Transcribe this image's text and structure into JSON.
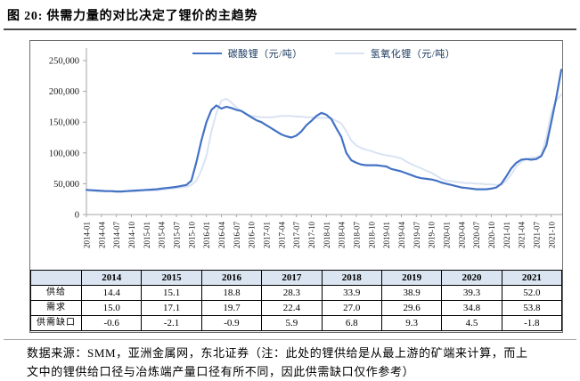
{
  "page": {
    "title": "图 20: 供需力量的对比决定了锂价的主趋势",
    "source_line1": "数据来源：SMM，亚洲金属网，东北证券（注：此处的锂供给是从最上游的矿端来计算，而上",
    "source_line2_clipped": "文中的锂供给口径与冶炼端产量口径有所不同，因此供需缺口仅作参考）"
  },
  "colors": {
    "carbonate_line": "#4472c4",
    "hydroxide_line": "#dae3f3",
    "axis": "#a6a6a6",
    "tick_text": "#1a1a1a",
    "table_header_bg": "#dbe5f1",
    "frame_border": "#6e6e6e"
  },
  "chart_data": {
    "type": "line",
    "title": "",
    "xlabel": "",
    "ylabel": "",
    "legend_position": "top-center",
    "grid": false,
    "y_axis": {
      "min": 0,
      "max": 250000,
      "tick_step": 50000,
      "tick_labels": [
        "0",
        "50,000",
        "100,000",
        "150,000",
        "200,000",
        "250,000"
      ]
    },
    "x_monthly_start": "2014-01",
    "x_monthly_end": "2021-12",
    "months_per_tick": 3,
    "x_tick_labels": [
      "2014-01",
      "2014-04",
      "2014-07",
      "2014-10",
      "2015-01",
      "2015-04",
      "2015-07",
      "2015-10",
      "2016-01",
      "2016-04",
      "2016-07",
      "2016-10",
      "2017-01",
      "2017-04",
      "2017-07",
      "2017-10",
      "2018-01",
      "2018-04",
      "2018-07",
      "2018-10",
      "2019-01",
      "2019-04",
      "2019-07",
      "2019-10",
      "2020-01",
      "2020-04",
      "2020-07",
      "2020-10",
      "2021-01",
      "2021-04",
      "2021-07",
      "2021-10"
    ],
    "series": [
      {
        "id": "carbonate",
        "name": "碳酸锂（元/吨）",
        "color": "#4472c4",
        "stroke_width": 2.2,
        "values": [
          40000,
          39500,
          39000,
          38500,
          38000,
          38000,
          37500,
          37500,
          38000,
          38500,
          39000,
          39500,
          40000,
          40500,
          41000,
          42000,
          43000,
          44000,
          45000,
          46500,
          48000,
          55000,
          85000,
          120000,
          150000,
          170000,
          177000,
          172000,
          175000,
          173000,
          170000,
          168000,
          163000,
          158000,
          153000,
          150000,
          145000,
          140000,
          135000,
          130000,
          127000,
          125000,
          128000,
          135000,
          145000,
          152000,
          160000,
          165000,
          162000,
          155000,
          140000,
          126000,
          100000,
          88000,
          84000,
          81000,
          80000,
          80000,
          80000,
          79000,
          78000,
          74000,
          72000,
          70000,
          67000,
          64000,
          61000,
          59000,
          58000,
          57000,
          55000,
          52000,
          50000,
          48000,
          46000,
          44000,
          43000,
          42000,
          41000,
          41000,
          41000,
          42000,
          44000,
          50000,
          62000,
          75000,
          84000,
          89000,
          90000,
          89000,
          90000,
          95000,
          112000,
          150000,
          190000,
          235000
        ]
      },
      {
        "id": "hydroxide",
        "name": "氢氧化锂（元/吨）",
        "color": "#dae3f3",
        "stroke_width": 2,
        "values": [
          39000,
          38500,
          38000,
          38000,
          37500,
          37500,
          37000,
          37000,
          37500,
          38000,
          38000,
          38500,
          39000,
          39000,
          39500,
          40000,
          41000,
          42000,
          43000,
          44000,
          45000,
          48000,
          55000,
          72000,
          95000,
          135000,
          165000,
          185000,
          188000,
          182000,
          174000,
          168000,
          163000,
          160000,
          159000,
          158000,
          158000,
          158000,
          159000,
          160000,
          160000,
          160000,
          159000,
          159000,
          158000,
          158000,
          157000,
          157000,
          157000,
          156000,
          152000,
          148000,
          135000,
          120000,
          112000,
          108000,
          105000,
          103000,
          100000,
          98000,
          96000,
          95000,
          93000,
          91000,
          86000,
          82000,
          78000,
          75000,
          71000,
          68000,
          63000,
          58000,
          55000,
          54000,
          53000,
          52000,
          51000,
          51000,
          50000,
          50000,
          49000,
          49000,
          48000,
          48000,
          55000,
          65000,
          78000,
          85000,
          90000,
          92000,
          93000,
          97000,
          125000,
          165000,
          185000,
          195000
        ]
      }
    ]
  },
  "table": {
    "header": [
      "",
      "2014",
      "2015",
      "2016",
      "2017",
      "2018",
      "2019",
      "2020",
      "2021"
    ],
    "rows": [
      {
        "label": "供给",
        "values": [
          "14.4",
          "15.1",
          "18.8",
          "28.3",
          "33.9",
          "38.9",
          "39.3",
          "52.0"
        ]
      },
      {
        "label": "需求",
        "values": [
          "15.0",
          "17.1",
          "19.7",
          "22.4",
          "27.0",
          "29.6",
          "34.8",
          "53.8"
        ]
      },
      {
        "label": "供需缺口",
        "values": [
          "-0.6",
          "-2.1",
          "-0.9",
          "5.9",
          "6.8",
          "9.3",
          "4.5",
          "-1.8"
        ]
      }
    ]
  }
}
